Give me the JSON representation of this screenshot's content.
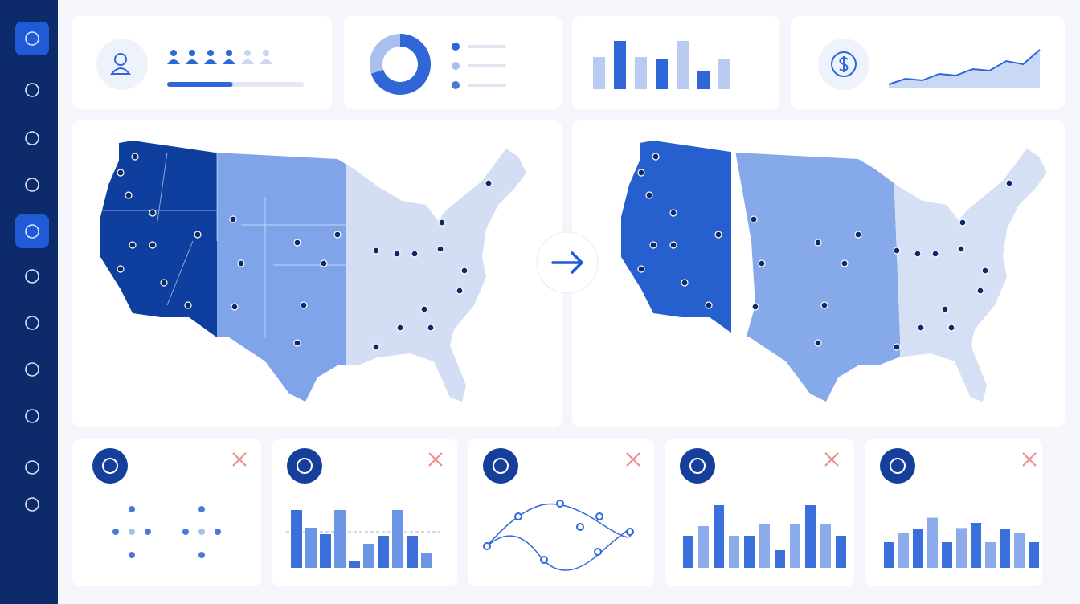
{
  "widgets": {
    "progress": {
      "type": "progress",
      "value": 48
    },
    "donut": {
      "type": "pie",
      "values": [
        70,
        30
      ]
    },
    "top_bars": {
      "type": "bar",
      "values": [
        40,
        60,
        40,
        38,
        60,
        22,
        38
      ]
    },
    "sparkline": {
      "type": "area",
      "values": [
        5,
        12,
        10,
        18,
        16,
        24,
        22,
        34,
        30,
        48
      ]
    },
    "bars_a": {
      "type": "bar",
      "values": [
        72,
        50,
        42,
        72,
        8,
        30,
        40,
        72,
        40,
        18
      ]
    },
    "bars_b": {
      "type": "bar",
      "values": [
        40,
        52,
        78,
        40,
        40,
        54,
        22,
        54,
        78,
        54,
        40
      ]
    },
    "bars_c": {
      "type": "bar",
      "values": [
        40,
        55,
        60,
        78,
        40,
        62,
        70,
        40,
        60,
        55,
        40
      ]
    }
  }
}
